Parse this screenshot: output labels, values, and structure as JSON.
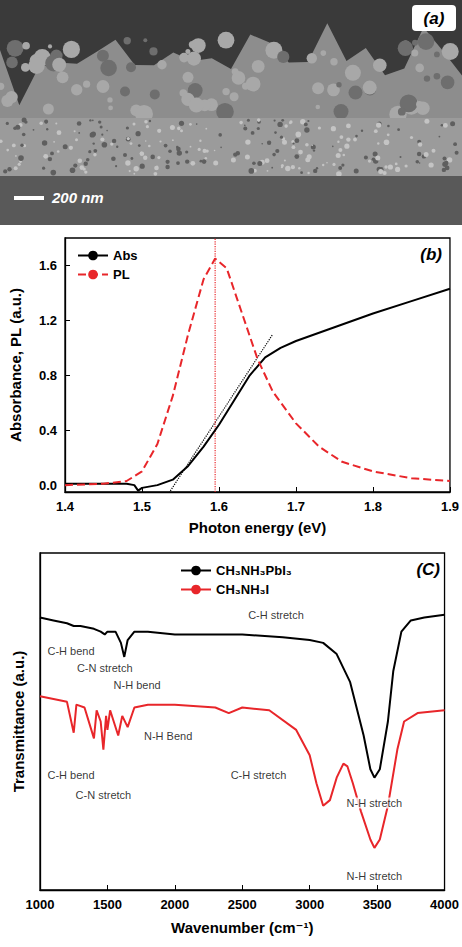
{
  "panel_a": {
    "label": "(a)",
    "scale_bar": "200 nm"
  },
  "chart_data": [
    {
      "type": "line",
      "label": "(b)",
      "x_label": "Photon energy (eV)",
      "y_label": "Absorbance, PL (a.u.)",
      "xlim": [
        1.4,
        1.9
      ],
      "xticks": [
        1.4,
        1.5,
        1.6,
        1.7,
        1.8,
        1.9
      ],
      "ylim": [
        -0.05,
        1.8
      ],
      "yticks": [
        {
          "value": 0,
          "label": "0.0"
        },
        0.4,
        0.8,
        1.2,
        1.6
      ],
      "grid": false,
      "legend": "upper left",
      "series": [
        {
          "name": "Abs",
          "color": "#000000",
          "line_style": "solid",
          "x": [
            1.4,
            1.45,
            1.48,
            1.49,
            1.495,
            1.5,
            1.52,
            1.54,
            1.56,
            1.58,
            1.6,
            1.62,
            1.64,
            1.66,
            1.68,
            1.7,
            1.75,
            1.8,
            1.85,
            1.9
          ],
          "values": [
            0.01,
            0.01,
            0.01,
            0.0,
            -0.04,
            -0.02,
            0.0,
            0.04,
            0.14,
            0.28,
            0.44,
            0.62,
            0.8,
            0.93,
            1.0,
            1.05,
            1.15,
            1.25,
            1.34,
            1.43
          ]
        },
        {
          "name": "PL",
          "color": "#e8262a",
          "line_style": "dashed",
          "x": [
            1.4,
            1.45,
            1.48,
            1.5,
            1.52,
            1.54,
            1.56,
            1.58,
            1.595,
            1.61,
            1.63,
            1.65,
            1.67,
            1.7,
            1.73,
            1.76,
            1.8,
            1.85,
            1.9
          ],
          "values": [
            0.0,
            0.01,
            0.03,
            0.1,
            0.3,
            0.65,
            1.1,
            1.5,
            1.65,
            1.58,
            1.25,
            0.92,
            0.68,
            0.45,
            0.28,
            0.17,
            0.1,
            0.05,
            0.03
          ]
        }
      ],
      "guides": [
        {
          "x": [
            1.53,
            1.67
          ],
          "values": [
            -0.1,
            1.1
          ],
          "color": "#000000",
          "line_style": "dotted"
        },
        {
          "x": [
            1.595,
            1.595
          ],
          "values": [
            -0.05,
            1.8
          ],
          "color": "#e8262a",
          "line_style": "dotted"
        }
      ]
    },
    {
      "type": "line",
      "label": "(C)",
      "x_label": "Wavenumber (cm⁻¹)",
      "y_label": "Transmittance (a.u.)",
      "xlim": [
        1000,
        4000
      ],
      "xticks": [
        1000,
        1500,
        2000,
        2500,
        3000,
        3500,
        4000
      ],
      "ylim": [
        -10,
        110
      ],
      "tick_labels": "x",
      "grid": false,
      "legend": "upper center",
      "series": [
        {
          "name": "CH₃NH₃PbI₃",
          "color": "#000000",
          "line_style": "solid",
          "x": [
            1000,
            1100,
            1200,
            1250,
            1300,
            1400,
            1450,
            1480,
            1500,
            1560,
            1600,
            1625,
            1650,
            1700,
            1800,
            2000,
            2200,
            2500,
            2800,
            3000,
            3100,
            3200,
            3300,
            3400,
            3450,
            3480,
            3520,
            3580,
            3620,
            3680,
            3750,
            3850,
            4000
          ],
          "values": [
            87,
            86,
            85,
            84,
            84,
            83,
            82,
            81,
            82,
            82,
            78,
            73,
            79,
            82,
            82,
            81,
            81,
            81,
            80,
            79,
            78,
            74,
            64,
            45,
            33,
            30,
            33,
            50,
            68,
            82,
            86,
            87,
            88
          ]
        },
        {
          "name": "CH₃NH₃I",
          "color": "#e8262a",
          "line_style": "solid",
          "x": [
            1000,
            1100,
            1200,
            1250,
            1270,
            1330,
            1400,
            1420,
            1450,
            1470,
            1490,
            1500,
            1520,
            1580,
            1610,
            1650,
            1700,
            1800,
            2000,
            2300,
            2400,
            2500,
            2700,
            2900,
            3000,
            3050,
            3100,
            3150,
            3200,
            3250,
            3280,
            3320,
            3380,
            3450,
            3480,
            3520,
            3580,
            3650,
            3700,
            3800,
            4000
          ],
          "values": [
            59,
            58,
            57,
            46,
            56,
            55,
            44,
            54,
            50,
            40,
            52,
            47,
            54,
            45,
            52,
            48,
            55,
            56,
            56,
            55,
            53,
            55,
            54,
            47,
            38,
            28,
            20,
            22,
            30,
            35,
            34,
            28,
            18,
            8,
            5,
            8,
            20,
            40,
            50,
            53,
            54
          ]
        }
      ],
      "annotations": [
        {
          "text": "C-H bend",
          "x": 1230,
          "y": 75,
          "color": "#000000"
        },
        {
          "text": "C-N stretch",
          "x": 1480,
          "y": 69,
          "color": "#000000"
        },
        {
          "text": "N-H bend",
          "x": 1720,
          "y": 63,
          "color": "#000000"
        },
        {
          "text": "C-H stretch",
          "x": 2750,
          "y": 88,
          "color": "#000000"
        },
        {
          "text": "N-H stretch",
          "x": 3480,
          "y": 21,
          "color": "#000000"
        },
        {
          "text": "C-H bend",
          "x": 1230,
          "y": 31,
          "color": "#000000"
        },
        {
          "text": "C-N stretch",
          "x": 1470,
          "y": 24,
          "color": "#000000"
        },
        {
          "text": "N-H Bend",
          "x": 1950,
          "y": 45,
          "color": "#000000"
        },
        {
          "text": "C-H stretch",
          "x": 2620,
          "y": 31,
          "color": "#000000"
        },
        {
          "text": "N-H stretch",
          "x": 3480,
          "y": -5,
          "color": "#000000"
        }
      ]
    }
  ]
}
